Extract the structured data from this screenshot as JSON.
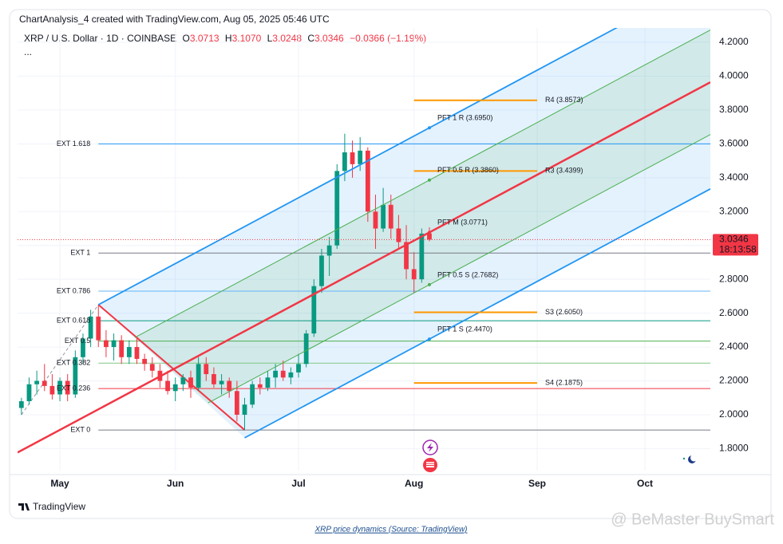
{
  "header": {
    "title": "ChartAnalysis_4 created with TradingView.com, Aug 05, 2025 05:46 UTC",
    "brand": "TradingView",
    "caption": "XRP price dynamics (Source: TradingView)",
    "watermark": "@ BeMaster BuySmart"
  },
  "chart_data": {
    "type": "candlestick",
    "legend": {
      "symbol": "XRP / U.S. Dollar · 1D · COINBASE",
      "o_label": "O",
      "o": "3.0713",
      "h_label": "H",
      "h": "3.1070",
      "l_label": "L",
      "l": "3.0248",
      "c_label": "C",
      "c": "3.0346",
      "change": "−0.0366 (−1.19%)",
      "more": "..."
    },
    "categories": [
      null,
      null,
      null,
      null,
      null,
      "May",
      null,
      null,
      null,
      null,
      null,
      null,
      null,
      null,
      null,
      null,
      null,
      null,
      null,
      null,
      "Jun",
      null,
      null,
      null,
      null,
      null,
      null,
      null,
      null,
      null,
      null,
      null,
      null,
      null,
      null,
      null,
      "Jul",
      null,
      null,
      null,
      null,
      null,
      null,
      null,
      null,
      null,
      null,
      null,
      null,
      null,
      null,
      "Aug",
      null,
      null,
      null,
      null,
      null,
      null,
      null,
      null,
      null,
      null,
      null,
      null,
      null,
      null,
      null,
      "Sep",
      null,
      null,
      null,
      null,
      null,
      null,
      null,
      null,
      null,
      null,
      null,
      null,
      null,
      "Oct",
      null,
      null,
      null,
      null,
      null,
      null,
      null,
      null
    ],
    "open": [
      2.04,
      2.08,
      2.18,
      2.2,
      2.17,
      2.12,
      2.2,
      2.12,
      2.34,
      2.45,
      2.58,
      2.44,
      2.4,
      2.44,
      2.34,
      2.4,
      2.33,
      2.3,
      2.26,
      2.2,
      2.14,
      2.18,
      2.22,
      2.16,
      2.3,
      2.24,
      2.18,
      2.2,
      2.14,
      2.0,
      2.06,
      2.18,
      2.16,
      2.22,
      2.26,
      2.22,
      2.25,
      2.3,
      2.48,
      2.76,
      2.94,
      3.0,
      3.44,
      3.55,
      3.48,
      3.56,
      3.2,
      3.1,
      3.24,
      3.1,
      3.02,
      2.86,
      2.8,
      3.0713,
      null,
      null,
      null,
      null,
      null,
      null,
      null,
      null,
      null,
      null,
      null,
      null,
      null,
      null,
      null,
      null,
      null,
      null,
      null,
      null,
      null,
      null,
      null,
      null,
      null,
      null,
      null,
      null,
      null,
      null,
      null,
      null,
      null,
      null,
      null,
      null
    ],
    "high": [
      2.1,
      2.22,
      2.26,
      2.3,
      2.24,
      2.22,
      2.24,
      2.38,
      2.48,
      2.62,
      2.65,
      2.5,
      2.48,
      2.47,
      2.44,
      2.46,
      2.36,
      2.34,
      2.3,
      2.26,
      2.22,
      2.24,
      2.26,
      2.34,
      2.34,
      2.28,
      2.24,
      2.22,
      2.2,
      2.1,
      2.2,
      2.22,
      2.26,
      2.3,
      2.32,
      2.28,
      2.36,
      2.5,
      2.8,
      2.98,
      3.05,
      3.48,
      3.66,
      3.62,
      3.64,
      3.58,
      3.3,
      3.34,
      3.3,
      3.18,
      3.12,
      2.96,
      3.1,
      3.107,
      null,
      null,
      null,
      null,
      null,
      null,
      null,
      null,
      null,
      null,
      null,
      null,
      null,
      null,
      null,
      null,
      null,
      null,
      null,
      null,
      null,
      null,
      null,
      null,
      null,
      null,
      null,
      null,
      null,
      null,
      null,
      null,
      null,
      null,
      null,
      null
    ],
    "low": [
      2.0,
      2.06,
      2.12,
      2.14,
      2.09,
      2.08,
      2.08,
      2.1,
      2.3,
      2.4,
      2.4,
      2.34,
      2.32,
      2.3,
      2.3,
      2.3,
      2.26,
      2.22,
      2.16,
      2.12,
      2.08,
      2.14,
      2.1,
      2.14,
      2.2,
      2.16,
      2.12,
      2.1,
      1.96,
      1.91,
      2.04,
      2.12,
      2.14,
      2.16,
      2.2,
      2.18,
      2.22,
      2.28,
      2.46,
      2.72,
      2.82,
      2.98,
      3.38,
      3.4,
      3.44,
      3.14,
      2.98,
      3.08,
      3.04,
      2.98,
      2.8,
      2.72,
      2.78,
      3.0248,
      null,
      null,
      null,
      null,
      null,
      null,
      null,
      null,
      null,
      null,
      null,
      null,
      null,
      null,
      null,
      null,
      null,
      null,
      null,
      null,
      null,
      null,
      null,
      null,
      null,
      null,
      null,
      null,
      null,
      null,
      null,
      null,
      null,
      null,
      null,
      null
    ],
    "close": [
      2.08,
      2.18,
      2.2,
      2.17,
      2.12,
      2.2,
      2.12,
      2.34,
      2.45,
      2.58,
      2.44,
      2.4,
      2.44,
      2.34,
      2.4,
      2.33,
      2.3,
      2.26,
      2.2,
      2.14,
      2.18,
      2.22,
      2.16,
      2.3,
      2.24,
      2.18,
      2.2,
      2.14,
      2.0,
      2.06,
      2.18,
      2.16,
      2.22,
      2.26,
      2.22,
      2.25,
      2.3,
      2.48,
      2.76,
      2.94,
      3.0,
      3.44,
      3.55,
      3.48,
      3.56,
      3.2,
      3.1,
      3.24,
      3.1,
      3.02,
      2.86,
      2.8,
      3.07,
      3.0346,
      null,
      null,
      null,
      null,
      null,
      null,
      null,
      null,
      null,
      null,
      null,
      null,
      null,
      null,
      null,
      null,
      null,
      null,
      null,
      null,
      null,
      null,
      null,
      null,
      null,
      null,
      null,
      null,
      null,
      null,
      null,
      null,
      null,
      null,
      null,
      null
    ],
    "up_color": "#089981",
    "down_color": "#f23645",
    "ylim": [
      1.67,
      4.285
    ],
    "yticks": [
      {
        "value": 1.8,
        "label": "1.8000"
      },
      {
        "value": 2.0,
        "label": "2.0000"
      },
      {
        "value": 2.2,
        "label": "2.2000"
      },
      {
        "value": 2.4,
        "label": "2.4000"
      },
      {
        "value": 2.6,
        "label": "2.6000"
      },
      {
        "value": 2.8,
        "label": "2.8000"
      },
      {
        "value": 3.0,
        "label": "3.0000"
      },
      {
        "value": 3.2,
        "label": "3.2000"
      },
      {
        "value": 3.4,
        "label": "3.4000"
      },
      {
        "value": 3.6,
        "label": "3.6000"
      },
      {
        "value": 3.8,
        "label": "3.8000"
      },
      {
        "value": 4.0,
        "label": "4.0000"
      },
      {
        "value": 4.2,
        "label": "4.2000"
      }
    ],
    "grid": true,
    "countdown": "18:13:58",
    "extension_levels": [
      {
        "label": "EXT 1.618",
        "value": 3.6,
        "color": "#2196f3"
      },
      {
        "label": "EXT 1",
        "value": 2.955,
        "color": "#787b86"
      },
      {
        "label": "EXT 0.786",
        "value": 2.73,
        "color": "#64b5f6"
      },
      {
        "label": "EXT 0.618",
        "value": 2.555,
        "color": "#089981"
      },
      {
        "label": "EXT 0.5",
        "value": 2.435,
        "color": "#4caf50"
      },
      {
        "label": "EXT 0.382",
        "value": 2.305,
        "color": "#81c784"
      },
      {
        "label": "EXT 0.236",
        "value": 2.155,
        "color": "#f23645"
      },
      {
        "label": "EXT 0",
        "value": 1.91,
        "color": "#787b86"
      }
    ],
    "pitchfork": [
      {
        "label": "PFT 1 R (3.6950)",
        "value": 3.695,
        "color": "#2196f3"
      },
      {
        "label": "PFT 0.5 R (3.3860)",
        "value": 3.386,
        "color": "#4caf50"
      },
      {
        "label": "PFT M (3.0771)",
        "value": 3.0771,
        "color": "#f23645"
      },
      {
        "label": "PFT 0.5 S (2.7682)",
        "value": 2.7682,
        "color": "#4caf50"
      },
      {
        "label": "PFT 1 S (2.4470)",
        "value": 2.447,
        "color": "#2196f3"
      }
    ],
    "pivot_points": [
      {
        "label": "R4 (3.8573)",
        "value": 3.8573
      },
      {
        "label": "R3 (3.4399)",
        "value": 3.4399
      },
      {
        "label": "S3 (2.6050)",
        "value": 2.605
      },
      {
        "label": "S4 (2.1875)",
        "value": 2.1875
      }
    ],
    "pivot_color": "#ff9800"
  }
}
